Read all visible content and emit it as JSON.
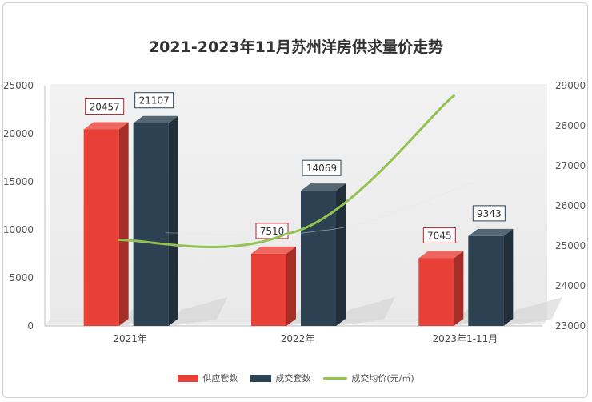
{
  "chart_data": {
    "type": "bar",
    "title": "2021-2023年11月苏州洋房供求量价走势",
    "categories": [
      "2021年",
      "2022年",
      "2023年1-11月"
    ],
    "series": [
      {
        "name": "供应套数",
        "kind": "bar",
        "axis": "left",
        "values": [
          20457,
          7510,
          7045
        ]
      },
      {
        "name": "成交套数",
        "kind": "bar",
        "axis": "left",
        "values": [
          21107,
          14069,
          9343
        ]
      },
      {
        "name": "成交均价(元/㎡)",
        "kind": "line",
        "axis": "right",
        "values": [
          25150,
          25300,
          28750
        ]
      }
    ],
    "y_left": {
      "min": 0,
      "max": 25000,
      "ticks": [
        "0",
        "5000",
        "10000",
        "15000",
        "20000",
        "25000"
      ]
    },
    "y_right": {
      "min": 23000,
      "max": 29000,
      "ticks": [
        "23000",
        "24000",
        "25000",
        "26000",
        "27000",
        "28000",
        "29000"
      ]
    },
    "grid": false,
    "legend": "bottom"
  },
  "colors": {
    "supply": "#e84037",
    "deal": "#2c4151",
    "price": "#92c250",
    "supply_label_border": "#c0202a",
    "deal_label_border": "#2c4151"
  }
}
